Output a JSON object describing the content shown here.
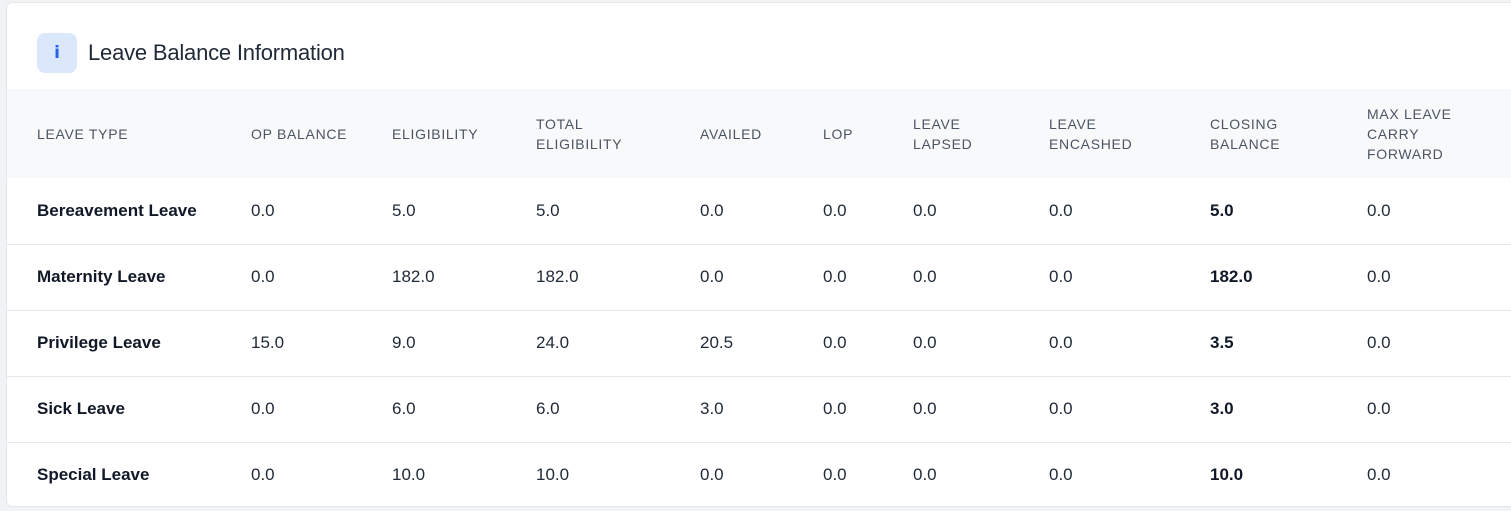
{
  "header": {
    "icon": "info-icon",
    "icon_glyph": "i",
    "title": "Leave Balance Information"
  },
  "table": {
    "columns": [
      "LEAVE TYPE",
      "OP BALANCE",
      "ELIGIBILITY",
      "TOTAL ELIGIBILITY",
      "AVAILED",
      "LOP",
      "LEAVE LAPSED",
      "LEAVE ENCASHED",
      "CLOSING BALANCE",
      "MAX LEAVE CARRY FORWARD"
    ],
    "rows": [
      [
        "Bereavement Leave",
        "0.0",
        "5.0",
        "5.0",
        "0.0",
        "0.0",
        "0.0",
        "0.0",
        "5.0",
        "0.0"
      ],
      [
        "Maternity Leave",
        "0.0",
        "182.0",
        "182.0",
        "0.0",
        "0.0",
        "0.0",
        "0.0",
        "182.0",
        "0.0"
      ],
      [
        "Privilege Leave",
        "15.0",
        "9.0",
        "24.0",
        "20.5",
        "0.0",
        "0.0",
        "0.0",
        "3.5",
        "0.0"
      ],
      [
        "Sick Leave",
        "0.0",
        "6.0",
        "6.0",
        "3.0",
        "0.0",
        "0.0",
        "0.0",
        "3.0",
        "0.0"
      ],
      [
        "Special Leave",
        "0.0",
        "10.0",
        "10.0",
        "0.0",
        "0.0",
        "0.0",
        "0.0",
        "10.0",
        "0.0"
      ]
    ]
  },
  "colors": {
    "accent": "#2563eb",
    "badge_bg": "#dbe8fc",
    "header_bg": "#f8f9fb"
  }
}
